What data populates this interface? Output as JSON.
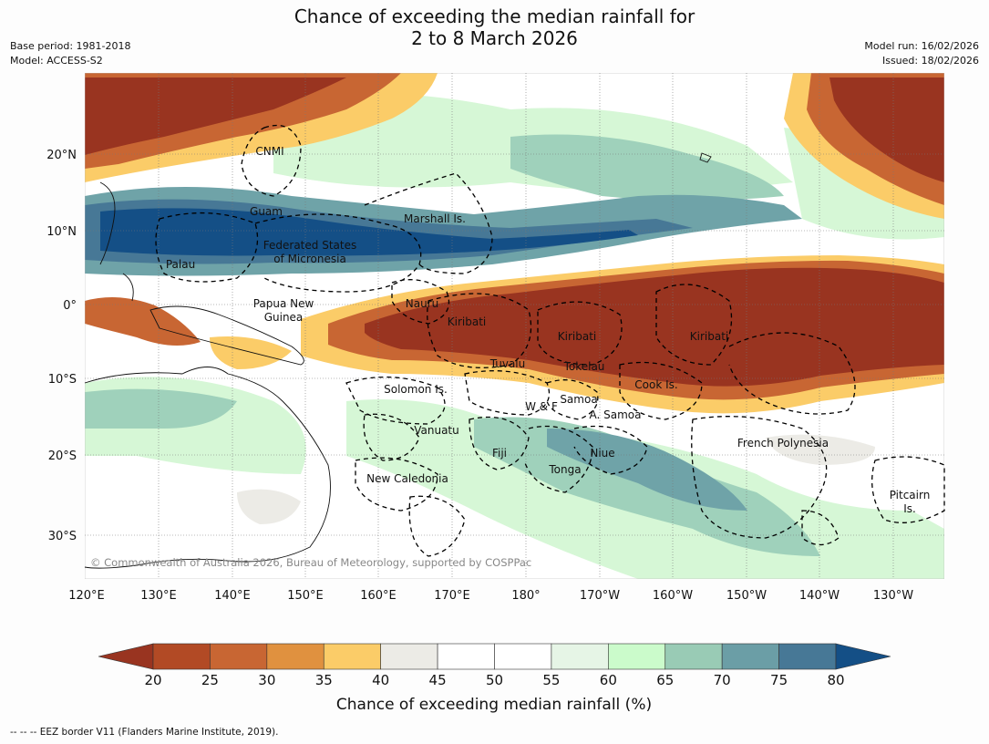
{
  "title_line1": "Chance of exceeding the median rainfall for",
  "title_line2": "2 to 8 March 2026",
  "base_period": "Base period: 1981-2018",
  "model": "Model: ACCESS-S2",
  "model_run": "Model run: 16/02/2026",
  "issued": "Issued: 18/02/2026",
  "copyright": "© Commonwealth of Australia 2026, Bureau of Meteorology, supported by COSPPac",
  "lat_labels": [
    "20°N",
    "10°N",
    "0°",
    "10°S",
    "20°S",
    "30°S"
  ],
  "lon_labels": [
    "120°E",
    "130°E",
    "140°E",
    "150°E",
    "160°E",
    "170°E",
    "180°",
    "170°W",
    "160°W",
    "150°W",
    "140°W",
    "130°W"
  ],
  "regions": {
    "cnmi": "CNMI",
    "guam": "Guam",
    "marshall": "Marshall Is.",
    "fsm1": "Federated States",
    "fsm2": "of Micronesia",
    "palau": "Palau",
    "png1": "Papua New",
    "png2": "Guinea",
    "nauru": "Nauru",
    "kiribati_w": "Kiribati",
    "kiribati_c": "Kiribati",
    "kiribati_e": "Kiribati",
    "tuvalu": "Tuvalu",
    "tokelau": "Tokelau",
    "cook": "Cook Is.",
    "solomon": "Solomon Is.",
    "samoa": "Samoa",
    "wf": "W & F",
    "asamoa": "A. Samoa",
    "vanuatu": "Vanuatu",
    "fiji": "Fiji",
    "niue": "Niue",
    "tonga": "Tonga",
    "frpoly": "French Polynesia",
    "newcal": "New Caledonia",
    "pitcairn1": "Pitcairn",
    "pitcairn2": "Is."
  },
  "colorbar": {
    "title": "Chance of exceeding median rainfall (%)",
    "ticks": [
      20,
      25,
      30,
      35,
      40,
      45,
      50,
      55,
      60,
      65,
      70,
      75,
      80
    ],
    "tick_labels": [
      "20",
      "25",
      "30",
      "35",
      "40",
      "45",
      "50",
      "55",
      "60",
      "65",
      "70",
      "75",
      "80"
    ],
    "colors": [
      "#993420",
      "#b24a25",
      "#c86633",
      "#e0913f",
      "#fbcc68",
      "#ecebe6",
      "#ffffff",
      "#ffffff",
      "#e6f5e6",
      "#cbfbcb",
      "#99cbb5",
      "#6b9ea6",
      "#477896",
      "#144f86"
    ]
  },
  "footer": "--  --  -- EEZ border V11 (Flanders Marine Institute, 2019)."
}
